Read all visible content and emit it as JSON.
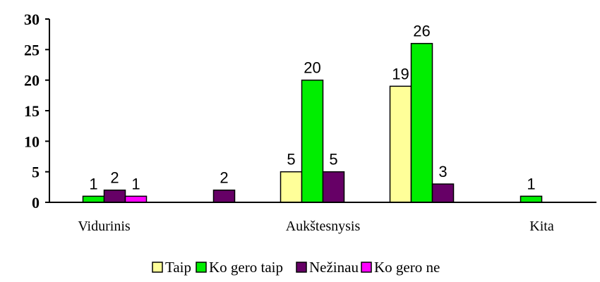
{
  "chart_data": {
    "type": "bar",
    "categories": [
      "Vidurinis",
      null,
      "Aukštesnysis",
      null,
      "Kita"
    ],
    "series": [
      {
        "name": "Taip",
        "color": "#ffff99",
        "values": [
          null,
          null,
          5,
          19,
          null
        ]
      },
      {
        "name": "Ko gero taip",
        "color": "#00ee00",
        "values": [
          1,
          null,
          20,
          26,
          1
        ]
      },
      {
        "name": "Nežinau",
        "color": "#660066",
        "values": [
          2,
          2,
          5,
          3,
          null
        ]
      },
      {
        "name": "Ko gero ne",
        "color": "#ff00ff",
        "values": [
          1,
          null,
          null,
          null,
          null
        ]
      }
    ],
    "ylim": [
      0,
      30
    ],
    "yticks": [
      0,
      5,
      10,
      15,
      20,
      25,
      30
    ],
    "grid": false,
    "legend": "bottom"
  }
}
